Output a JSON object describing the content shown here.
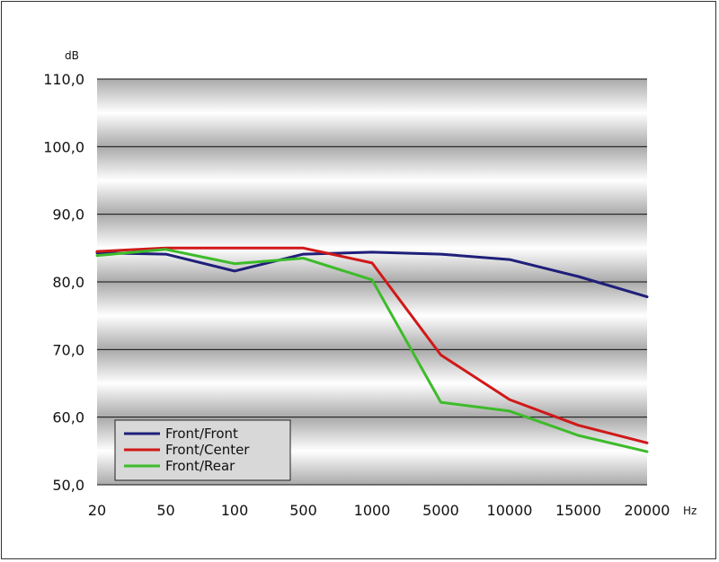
{
  "chart_data": {
    "type": "line",
    "categories": [
      "20",
      "50",
      "100",
      "500",
      "1000",
      "5000",
      "10000",
      "15000",
      "20000"
    ],
    "xlabel": "Hz",
    "ylabel": "dB",
    "ylim": [
      50,
      110
    ],
    "yticks": [
      "50,0",
      "60,0",
      "70,0",
      "80,0",
      "90,0",
      "100,0",
      "110,0"
    ],
    "grid": true,
    "legend_position": "bottom-left",
    "series": [
      {
        "name": "Front/Front",
        "color": "#1f1f7a",
        "values": [
          84.3,
          84.1,
          81.6,
          84.1,
          84.4,
          84.1,
          83.3,
          80.8,
          77.8
        ]
      },
      {
        "name": "Front/Center",
        "color": "#d01818",
        "values": [
          84.5,
          85.0,
          85.0,
          85.0,
          82.8,
          69.2,
          62.6,
          58.8,
          56.2
        ]
      },
      {
        "name": "Front/Rear",
        "color": "#3dbb2a",
        "values": [
          83.9,
          84.8,
          82.7,
          83.5,
          80.3,
          62.2,
          60.9,
          57.3,
          54.9
        ]
      }
    ]
  }
}
